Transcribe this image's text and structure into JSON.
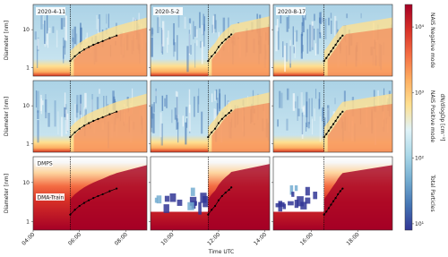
{
  "chart_data": {
    "type": "heatmap",
    "x_label": "Time UTC",
    "y_label": "Diameter [nm]",
    "xlim": [
      4,
      19.5
    ],
    "xticks": [
      {
        "value": 4,
        "label": "04:00"
      },
      {
        "value": 6,
        "label": "06:00"
      },
      {
        "value": 8,
        "label": "08:00"
      },
      {
        "value": 10,
        "label": "10:00"
      },
      {
        "value": 12,
        "label": "12:00"
      },
      {
        "value": 14,
        "label": "14:00"
      },
      {
        "value": 16,
        "label": "16:00"
      },
      {
        "value": 18,
        "label": "18:00"
      }
    ],
    "ylim": [
      0.6,
      46
    ],
    "yticks": [
      1,
      10
    ],
    "log_y": true,
    "dates": [
      "2020-4-11",
      "2020-5-2",
      "2020-8-17"
    ],
    "rows": [
      "NAIS Negative mode",
      "NAIS Positive mode",
      "Total Particles"
    ],
    "annotations": [
      "DMPS",
      "DMA-Train"
    ],
    "events": [
      {
        "x": [
          5.6,
          5.8,
          6.0,
          6.2,
          6.4,
          6.6,
          6.8,
          7.0,
          7.3,
          7.6
        ],
        "y": [
          1.5,
          2,
          2.5,
          3,
          3.5,
          4,
          4.5,
          5,
          6,
          7
        ],
        "color": "#000000"
      },
      {
        "x": [
          11.55,
          11.7,
          11.85,
          12.0,
          12.15,
          12.3,
          12.45,
          12.55
        ],
        "y": [
          1.5,
          2,
          2.5,
          3.5,
          4.5,
          5.5,
          6.5,
          7.5
        ],
        "color": "#000000"
      },
      {
        "x": [
          16.55,
          16.65,
          16.75,
          16.85,
          16.95,
          17.05,
          17.15,
          17.25,
          17.35
        ],
        "y": [
          1.5,
          1.8,
          2.2,
          2.7,
          3.3,
          4,
          5,
          6,
          7
        ],
        "color": "#000000"
      }
    ],
    "colorbar": {
      "label": "dN/dlogDp [cm⁻³]",
      "lim": [
        8,
        22000
      ],
      "log": true,
      "ticks": [
        {
          "value": 10,
          "label": "10¹"
        },
        {
          "value": 100,
          "label": "10²"
        },
        {
          "value": 1000,
          "label": "10³"
        },
        {
          "value": 10000,
          "label": "10⁴"
        }
      ],
      "colors": [
        "#313695",
        "#4575b4",
        "#74add1",
        "#abd9e9",
        "#e0f3f8",
        "#fee090",
        "#fdae61",
        "#f46d43",
        "#d73027",
        "#a50026"
      ]
    }
  }
}
